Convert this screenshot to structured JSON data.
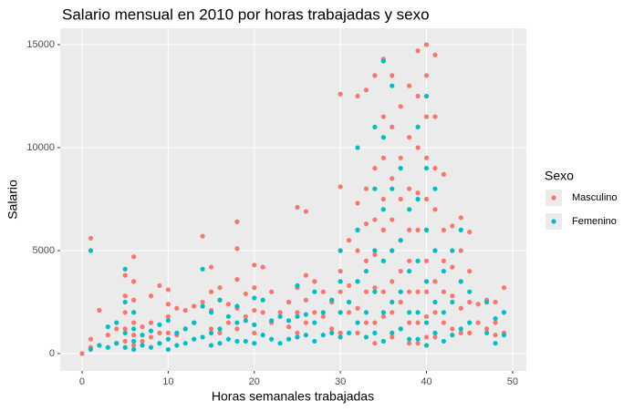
{
  "chart_data": {
    "type": "scatter",
    "title": "Salario mensual en 2010 por horas trabajadas y sexo",
    "x_label": "Horas semanales trabajadas",
    "y_label": "Salario",
    "legend_title": "Sexo",
    "legend_position": "right",
    "grid": true,
    "xlim": [
      -2.54,
      51.6
    ],
    "ylim": [
      -841,
      15796
    ],
    "xticks": [
      0,
      10,
      20,
      30,
      40,
      50
    ],
    "yticks": [
      0,
      5000,
      10000,
      15000
    ],
    "series": [
      {
        "name": "Masculino",
        "color": "#F8766D",
        "x": [
          0,
          1,
          1,
          1,
          2,
          2,
          3,
          4,
          4,
          5,
          5,
          5,
          5,
          5,
          6,
          6,
          6,
          6,
          6,
          6,
          6,
          7,
          7,
          8,
          8,
          8,
          9,
          9,
          10,
          10,
          10,
          10,
          11,
          11,
          12,
          12,
          13,
          13,
          14,
          14,
          15,
          15,
          15,
          15,
          16,
          16,
          16,
          17,
          17,
          18,
          18,
          18,
          18,
          18,
          19,
          19,
          20,
          20,
          20,
          20,
          21,
          21,
          22,
          22,
          23,
          24,
          24,
          25,
          25,
          25,
          25,
          26,
          26,
          26,
          26,
          27,
          27,
          28,
          28,
          29,
          29,
          30,
          30,
          30,
          30,
          30,
          30,
          30,
          31,
          31,
          31,
          32,
          32,
          32,
          32,
          32,
          32,
          33,
          33,
          33,
          33,
          33,
          33,
          34,
          34,
          34,
          34,
          34,
          34,
          34,
          35,
          35,
          35,
          35,
          35,
          35,
          35,
          35,
          35,
          36,
          36,
          36,
          36,
          36,
          36,
          36,
          36,
          37,
          37,
          37,
          37,
          37,
          37,
          37,
          38,
          38,
          38,
          38,
          38,
          38,
          38,
          38,
          39,
          39,
          39,
          39,
          39,
          39,
          39,
          39,
          39,
          40,
          40,
          40,
          40,
          40,
          40,
          40,
          40,
          40,
          40,
          41,
          41,
          41,
          41,
          41,
          41,
          41,
          41,
          42,
          42,
          42,
          42,
          42,
          43,
          43,
          43,
          43,
          44,
          44,
          44,
          44,
          44,
          45,
          45,
          45,
          45,
          46,
          46,
          47,
          47,
          48,
          48,
          48,
          49,
          49,
          49
        ],
        "values": [
          0,
          5600,
          700,
          300,
          2100,
          400,
          900,
          1200,
          500,
          3800,
          2800,
          2000,
          1200,
          600,
          4700,
          3500,
          2600,
          2000,
          1500,
          900,
          400,
          1300,
          600,
          2800,
          1500,
          800,
          3300,
          1000,
          3100,
          2400,
          1800,
          1000,
          2200,
          900,
          2100,
          1200,
          2300,
          1500,
          5700,
          2500,
          4200,
          3000,
          2100,
          1200,
          3200,
          2600,
          1000,
          2400,
          1500,
          6400,
          5100,
          3600,
          2200,
          1200,
          2900,
          1800,
          4300,
          3200,
          2100,
          1000,
          4200,
          2000,
          3000,
          1500,
          2000,
          2500,
          1300,
          7100,
          3200,
          2000,
          1000,
          6900,
          3800,
          2600,
          1500,
          3500,
          2000,
          3000,
          1800,
          2500,
          1200,
          12600,
          8100,
          5000,
          4000,
          3000,
          2000,
          1000,
          5500,
          3300,
          2000,
          12500,
          7300,
          5000,
          3500,
          2200,
          1000,
          12800,
          8000,
          6300,
          4500,
          3000,
          1500,
          13500,
          9000,
          6500,
          4800,
          3200,
          1500,
          500,
          14300,
          11500,
          9500,
          7500,
          6000,
          4500,
          3000,
          1800,
          600,
          13500,
          11000,
          8500,
          6500,
          5000,
          3500,
          2000,
          800,
          12000,
          9500,
          7500,
          5500,
          4000,
          2500,
          1200,
          13000,
          10500,
          8000,
          6000,
          4500,
          3000,
          1500,
          500,
          14700,
          12500,
          10000,
          7800,
          6000,
          4500,
          3000,
          1500,
          500,
          15000,
          13500,
          11500,
          9500,
          7500,
          6000,
          4500,
          3000,
          1800,
          800,
          14500,
          11500,
          9000,
          7000,
          5000,
          3500,
          2000,
          800,
          8700,
          6000,
          4500,
          3000,
          1500,
          6200,
          4200,
          2800,
          1200,
          6600,
          5000,
          3500,
          2200,
          1000,
          5900,
          4000,
          2500,
          1000,
          2400,
          1500,
          2600,
          1200,
          2500,
          1500,
          900,
          3200,
          2000,
          1000
        ]
      },
      {
        "name": "Femenino",
        "color": "#00BFC4",
        "x": [
          1,
          1,
          2,
          3,
          3,
          4,
          4,
          5,
          5,
          5,
          5,
          6,
          6,
          6,
          6,
          7,
          7,
          8,
          8,
          9,
          9,
          10,
          10,
          10,
          11,
          11,
          12,
          12,
          13,
          13,
          14,
          14,
          14,
          15,
          15,
          15,
          16,
          16,
          16,
          17,
          17,
          18,
          18,
          18,
          19,
          19,
          20,
          20,
          20,
          21,
          21,
          22,
          22,
          23,
          23,
          24,
          24,
          25,
          25,
          25,
          26,
          26,
          27,
          27,
          27,
          28,
          28,
          29,
          29,
          30,
          30,
          30,
          30,
          31,
          31,
          32,
          32,
          32,
          32,
          33,
          33,
          33,
          34,
          34,
          34,
          34,
          34,
          35,
          35,
          35,
          35,
          35,
          35,
          36,
          36,
          36,
          36,
          36,
          37,
          37,
          37,
          37,
          38,
          38,
          38,
          38,
          39,
          39,
          39,
          39,
          39,
          40,
          40,
          40,
          40,
          40,
          40,
          41,
          41,
          41,
          41,
          42,
          42,
          42,
          43,
          43,
          43,
          44,
          44,
          44,
          45,
          45,
          47,
          47,
          48,
          48,
          49,
          49
        ],
        "values": [
          5000,
          200,
          400,
          1300,
          300,
          1500,
          500,
          4100,
          2500,
          1000,
          300,
          2000,
          1200,
          600,
          200,
          900,
          400,
          1100,
          300,
          1400,
          500,
          1600,
          700,
          200,
          1000,
          400,
          1200,
          500,
          1500,
          700,
          4100,
          2300,
          800,
          2000,
          1000,
          400,
          2600,
          1200,
          500,
          1800,
          700,
          2300,
          1500,
          600,
          1600,
          600,
          2700,
          1400,
          500,
          2600,
          900,
          1600,
          700,
          1800,
          500,
          1600,
          700,
          3300,
          1800,
          800,
          1900,
          900,
          3000,
          1500,
          600,
          2000,
          900,
          2600,
          1000,
          5000,
          3500,
          2000,
          800,
          2500,
          1000,
          10000,
          6000,
          3500,
          1500,
          4000,
          2000,
          800,
          11000,
          8000,
          5000,
          3000,
          1000,
          14200,
          10500,
          7000,
          4500,
          2000,
          600,
          13000,
          8000,
          5000,
          2500,
          1000,
          9000,
          5500,
          3000,
          1200,
          7000,
          4000,
          2000,
          700,
          11000,
          7500,
          4500,
          2000,
          700,
          12500,
          9000,
          6000,
          3500,
          1500,
          400,
          8000,
          5000,
          2500,
          1000,
          4000,
          2000,
          600,
          5000,
          2500,
          900,
          6000,
          3500,
          1200,
          3000,
          1500,
          2500,
          1000,
          1700,
          500,
          2000,
          900
        ]
      }
    ]
  }
}
